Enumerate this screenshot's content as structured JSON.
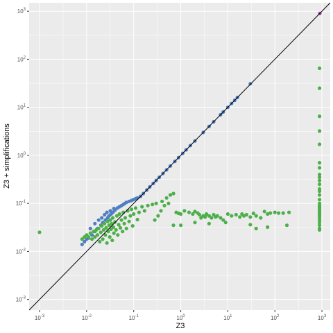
{
  "chart_data": {
    "type": "scatter",
    "title": "",
    "xlabel": "Z3",
    "ylabel": "Z3 + simplifications",
    "scale": "log10",
    "xlim": [
      0.0006,
      1500
    ],
    "ylim": [
      0.0006,
      1500
    ],
    "x_ticks": [
      {
        "base": "10",
        "exp": "-3",
        "value": 0.001
      },
      {
        "base": "10",
        "exp": "-2",
        "value": 0.01
      },
      {
        "base": "10",
        "exp": "-1",
        "value": 0.1
      },
      {
        "base": "10",
        "exp": "0",
        "value": 1
      },
      {
        "base": "10",
        "exp": "1",
        "value": 10
      },
      {
        "base": "10",
        "exp": "2",
        "value": 100
      },
      {
        "base": "10",
        "exp": "3",
        "value": 1000
      }
    ],
    "y_ticks": [
      {
        "base": "10",
        "exp": "-3",
        "value": 0.001
      },
      {
        "base": "10",
        "exp": "-2",
        "value": 0.01
      },
      {
        "base": "10",
        "exp": "-1",
        "value": 0.1
      },
      {
        "base": "10",
        "exp": "0",
        "value": 1
      },
      {
        "base": "10",
        "exp": "1",
        "value": 10
      },
      {
        "base": "10",
        "exp": "2",
        "value": 100
      },
      {
        "base": "10",
        "exp": "3",
        "value": 1000
      }
    ],
    "grid": true,
    "panel_background": "#ebebeb",
    "reference_line": {
      "slope": 1,
      "intercept": 0,
      "color": "#000000"
    },
    "series": [
      {
        "color": "#4f7fc0",
        "points": [
          [
            0.008,
            0.014
          ],
          [
            0.009,
            0.016
          ],
          [
            0.01,
            0.018
          ],
          [
            0.011,
            0.019
          ],
          [
            0.013,
            0.022
          ],
          [
            0.015,
            0.026
          ],
          [
            0.017,
            0.03
          ],
          [
            0.02,
            0.035
          ],
          [
            0.022,
            0.04
          ],
          [
            0.025,
            0.045
          ],
          [
            0.028,
            0.05
          ],
          [
            0.03,
            0.055
          ],
          [
            0.033,
            0.06
          ],
          [
            0.036,
            0.065
          ],
          [
            0.04,
            0.072
          ],
          [
            0.045,
            0.08
          ],
          [
            0.05,
            0.085
          ],
          [
            0.055,
            0.09
          ],
          [
            0.06,
            0.095
          ],
          [
            0.065,
            0.1
          ],
          [
            0.07,
            0.105
          ],
          [
            0.08,
            0.11
          ],
          [
            0.09,
            0.115
          ],
          [
            0.1,
            0.12
          ],
          [
            0.11,
            0.125
          ],
          [
            0.12,
            0.13
          ],
          [
            0.14,
            0.14
          ],
          [
            0.16,
            0.16
          ],
          [
            0.19,
            0.19
          ],
          [
            0.22,
            0.22
          ],
          [
            0.26,
            0.26
          ],
          [
            0.3,
            0.3
          ],
          [
            0.35,
            0.35
          ],
          [
            0.42,
            0.42
          ],
          [
            0.5,
            0.5
          ],
          [
            0.6,
            0.6
          ],
          [
            0.75,
            0.75
          ],
          [
            0.9,
            0.9
          ],
          [
            1.1,
            1.1
          ],
          [
            1.3,
            1.3
          ],
          [
            1.6,
            1.6
          ],
          [
            2,
            2
          ],
          [
            3,
            3
          ],
          [
            4,
            4
          ],
          [
            5,
            5
          ],
          [
            7,
            7
          ],
          [
            8,
            8
          ],
          [
            10,
            10
          ],
          [
            12,
            12
          ],
          [
            14,
            14
          ],
          [
            16,
            16
          ],
          [
            30,
            31
          ],
          [
            0.012,
            0.03
          ],
          [
            0.015,
            0.038
          ],
          [
            0.018,
            0.045
          ],
          [
            0.021,
            0.05
          ],
          [
            0.024,
            0.058
          ],
          [
            0.027,
            0.065
          ],
          [
            0.032,
            0.07
          ],
          [
            0.038,
            0.078
          ]
        ]
      },
      {
        "color": "#4daf4a",
        "points": [
          [
            0.001,
            0.025
          ],
          [
            0.008,
            0.018
          ],
          [
            0.009,
            0.02
          ],
          [
            0.01,
            0.022
          ],
          [
            0.011,
            0.02
          ],
          [
            0.012,
            0.024
          ],
          [
            0.013,
            0.018
          ],
          [
            0.014,
            0.026
          ],
          [
            0.015,
            0.02
          ],
          [
            0.016,
            0.028
          ],
          [
            0.017,
            0.022
          ],
          [
            0.018,
            0.03
          ],
          [
            0.019,
            0.016
          ],
          [
            0.02,
            0.025
          ],
          [
            0.021,
            0.034
          ],
          [
            0.022,
            0.018
          ],
          [
            0.023,
            0.028
          ],
          [
            0.024,
            0.038
          ],
          [
            0.025,
            0.022
          ],
          [
            0.026,
            0.031
          ],
          [
            0.027,
            0.015
          ],
          [
            0.028,
            0.042
          ],
          [
            0.029,
            0.026
          ],
          [
            0.03,
            0.035
          ],
          [
            0.031,
            0.02
          ],
          [
            0.032,
            0.045
          ],
          [
            0.033,
            0.029
          ],
          [
            0.034,
            0.038
          ],
          [
            0.035,
            0.017
          ],
          [
            0.036,
            0.05
          ],
          [
            0.037,
            0.032
          ],
          [
            0.038,
            0.024
          ],
          [
            0.04,
            0.041
          ],
          [
            0.042,
            0.028
          ],
          [
            0.044,
            0.055
          ],
          [
            0.046,
            0.022
          ],
          [
            0.048,
            0.036
          ],
          [
            0.05,
            0.06
          ],
          [
            0.052,
            0.031
          ],
          [
            0.055,
            0.045
          ],
          [
            0.058,
            0.026
          ],
          [
            0.06,
            0.065
          ],
          [
            0.063,
            0.038
          ],
          [
            0.066,
            0.05
          ],
          [
            0.07,
            0.03
          ],
          [
            0.075,
            0.07
          ],
          [
            0.08,
            0.042
          ],
          [
            0.085,
            0.055
          ],
          [
            0.09,
            0.075
          ],
          [
            0.095,
            0.034
          ],
          [
            0.1,
            0.06
          ],
          [
            0.11,
            0.08
          ],
          [
            0.12,
            0.046
          ],
          [
            0.13,
            0.065
          ],
          [
            0.15,
            0.085
          ],
          [
            0.17,
            0.07
          ],
          [
            0.2,
            0.09
          ],
          [
            0.25,
            0.095
          ],
          [
            0.3,
            0.1
          ],
          [
            0.4,
            0.11
          ],
          [
            0.5,
            0.13
          ],
          [
            0.6,
            0.15
          ],
          [
            0.7,
            0.16
          ],
          [
            0.45,
            0.09
          ],
          [
            0.55,
            0.1
          ],
          [
            0.8,
            0.065
          ],
          [
            0.9,
            0.062
          ],
          [
            1.0,
            0.06
          ],
          [
            1.2,
            0.07
          ],
          [
            1.5,
            0.065
          ],
          [
            1.8,
            0.06
          ],
          [
            2.0,
            0.068
          ],
          [
            2.3,
            0.063
          ],
          [
            2.5,
            0.058
          ],
          [
            2.7,
            0.05
          ],
          [
            3.0,
            0.055
          ],
          [
            3.3,
            0.052
          ],
          [
            3.5,
            0.06
          ],
          [
            4.0,
            0.055
          ],
          [
            4.5,
            0.05
          ],
          [
            5.0,
            0.058
          ],
          [
            5.5,
            0.052
          ],
          [
            6.0,
            0.055
          ],
          [
            7.0,
            0.05
          ],
          [
            8.0,
            0.045
          ],
          [
            9.0,
            0.04
          ],
          [
            10.0,
            0.06
          ],
          [
            12.0,
            0.055
          ],
          [
            15.0,
            0.058
          ],
          [
            18.0,
            0.052
          ],
          [
            20.0,
            0.06
          ],
          [
            22.0,
            0.055
          ],
          [
            25.0,
            0.058
          ],
          [
            30.0,
            0.052
          ],
          [
            35.0,
            0.062
          ],
          [
            40.0,
            0.055
          ],
          [
            50.0,
            0.05
          ],
          [
            60.0,
            0.068
          ],
          [
            70.0,
            0.06
          ],
          [
            80.0,
            0.063
          ],
          [
            100.0,
            0.065
          ],
          [
            120.0,
            0.063
          ],
          [
            150.0,
            0.063
          ],
          [
            200.0,
            0.065
          ],
          [
            180.0,
            0.035
          ],
          [
            0.7,
            0.035
          ],
          [
            1.0,
            0.035
          ],
          [
            2.0,
            0.04
          ],
          [
            4.0,
            0.038
          ],
          [
            30.0,
            0.036
          ],
          [
            40.0,
            0.03
          ],
          [
            70.0,
            0.032
          ],
          [
            0.28,
            0.045
          ],
          [
            0.33,
            0.055
          ],
          [
            0.38,
            0.07
          ],
          [
            890,
            65
          ],
          [
            890,
            25
          ],
          [
            890,
            6.5
          ],
          [
            890,
            3.2
          ],
          [
            890,
            1.7
          ],
          [
            890,
            0.7
          ],
          [
            890,
            0.55
          ],
          [
            890,
            0.4
          ],
          [
            890,
            0.35
          ],
          [
            890,
            0.3
          ],
          [
            890,
            0.25
          ],
          [
            890,
            0.2
          ],
          [
            890,
            0.18
          ],
          [
            890,
            0.15
          ],
          [
            890,
            0.12
          ],
          [
            890,
            0.1
          ],
          [
            890,
            0.09
          ],
          [
            890,
            0.085
          ],
          [
            890,
            0.08
          ],
          [
            890,
            0.075
          ],
          [
            890,
            0.07
          ],
          [
            890,
            0.065
          ],
          [
            890,
            0.06
          ],
          [
            890,
            0.055
          ],
          [
            890,
            0.05
          ],
          [
            890,
            0.045
          ],
          [
            890,
            0.04
          ],
          [
            890,
            0.035
          ],
          [
            890,
            0.03
          ],
          [
            890,
            0.028
          ]
        ]
      },
      {
        "color": "#984ea3",
        "points": [
          [
            900,
            900
          ]
        ]
      }
    ]
  }
}
